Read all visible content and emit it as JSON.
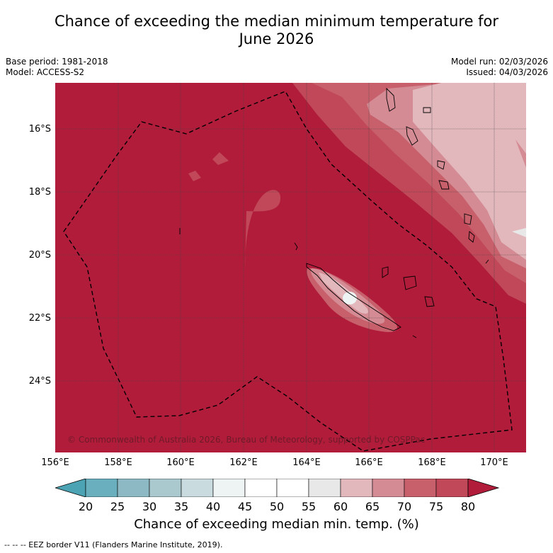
{
  "title_line1": "Chance of exceeding the median minimum temperature for",
  "title_line2": "June 2026",
  "base_period": "Base period: 1981-2018",
  "model": "Model: ACCESS-S2",
  "model_run": "Model run: 02/03/2026",
  "issued": "Issued: 04/03/2026",
  "lat_ticks": [
    "16°S",
    "18°S",
    "20°S",
    "22°S",
    "24°S"
  ],
  "lon_ticks": [
    "156°E",
    "158°E",
    "160°E",
    "162°E",
    "164°E",
    "166°E",
    "168°E",
    "170°E"
  ],
  "credit": "© Commonwealth of Australia 2026, Bureau of Meteorology, supported by COSPPac",
  "colorbar": {
    "ticks": [
      "20",
      "25",
      "30",
      "35",
      "40",
      "45",
      "50",
      "55",
      "60",
      "65",
      "70",
      "75",
      "80"
    ],
    "colors": [
      "#4ba3b3",
      "#6aafbe",
      "#8db9c4",
      "#a9c9ce",
      "#c9dbdf",
      "#eef3f4",
      "#ffffff",
      "#ffffff",
      "#e8e8e8",
      "#e2b8bd",
      "#d48b94",
      "#c8606c",
      "#c04858",
      "#b01c3a"
    ],
    "label": "Chance of exceeding median min. temp. (%)"
  },
  "footnote": "--  --  -- EEZ border V11 (Flanders Marine Institute, 2019)."
}
